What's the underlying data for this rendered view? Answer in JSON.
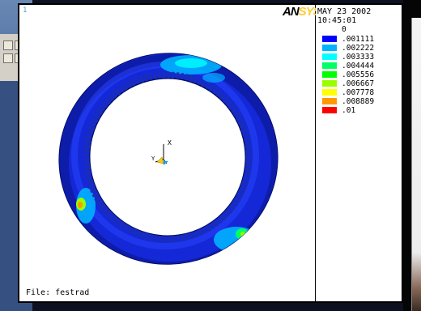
{
  "window": {
    "number": "1",
    "logo_an": "AN",
    "logo_sys": "SYS",
    "date": "MAY 23 2002",
    "time": "10:45:01",
    "file_label": "File: festrad"
  },
  "legend": {
    "min_value": "0",
    "bands": [
      {
        "value": ".001111",
        "color": "#0000ff"
      },
      {
        "value": ".002222",
        "color": "#00b2ff"
      },
      {
        "value": ".003333",
        "color": "#00ffff"
      },
      {
        "value": ".004444",
        "color": "#00ff66"
      },
      {
        "value": ".005556",
        "color": "#00ff00"
      },
      {
        "value": ".006667",
        "color": "#99ff00"
      },
      {
        "value": ".007778",
        "color": "#ffff00"
      },
      {
        "value": ".008889",
        "color": "#ff9900"
      },
      {
        "value": ".01",
        "color": "#ff0000"
      }
    ]
  },
  "triad": {
    "x_label": "X",
    "y_label": "Y"
  }
}
